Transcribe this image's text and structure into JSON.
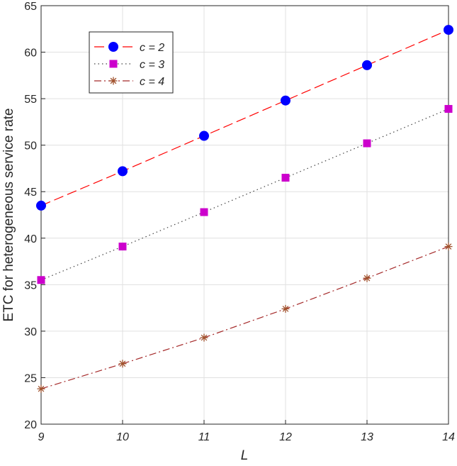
{
  "chart_data": {
    "type": "line",
    "title": "",
    "xlabel": "L",
    "ylabel": "ETC for heterogeneous service rate",
    "x": [
      9,
      10,
      11,
      12,
      13,
      14
    ],
    "xlim": [
      9,
      14
    ],
    "ylim": [
      20,
      65
    ],
    "xticks": [
      "9",
      "10",
      "11",
      "12",
      "13",
      "14"
    ],
    "yticks": [
      "20",
      "25",
      "30",
      "35",
      "40",
      "45",
      "50",
      "55",
      "60",
      "65"
    ],
    "grid": true,
    "legend_position": "top-left",
    "series": [
      {
        "name": "c = 2",
        "values": [
          43.5,
          47.2,
          51.0,
          54.8,
          58.6,
          62.4
        ],
        "color": "#ff0000",
        "line_style": "dashed",
        "marker": "circle",
        "marker_color": "#0000ff"
      },
      {
        "name": "c = 3",
        "values": [
          35.5,
          39.1,
          42.8,
          46.5,
          50.2,
          53.9
        ],
        "color": "#444444",
        "line_style": "dotted",
        "marker": "square",
        "marker_color": "#cc00cc"
      },
      {
        "name": "c = 4",
        "values": [
          23.8,
          26.5,
          29.3,
          32.4,
          35.7,
          39.1
        ],
        "color": "#a52a2a",
        "line_style": "dashdot",
        "marker": "asterisk",
        "marker_color": "#a0522d"
      }
    ]
  }
}
